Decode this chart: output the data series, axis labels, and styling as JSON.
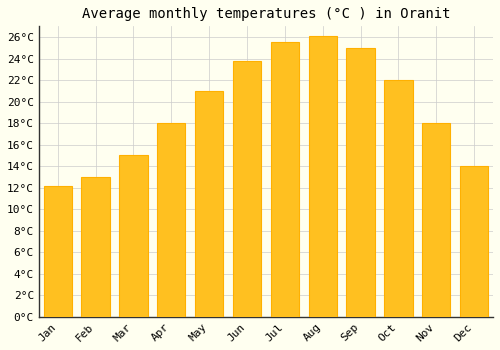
{
  "title": "Average monthly temperatures (°C ) in Oranit",
  "months": [
    "Jan",
    "Feb",
    "Mar",
    "Apr",
    "May",
    "Jun",
    "Jul",
    "Aug",
    "Sep",
    "Oct",
    "Nov",
    "Dec"
  ],
  "temperatures": [
    12.2,
    13.0,
    15.0,
    18.0,
    21.0,
    23.8,
    25.5,
    26.1,
    25.0,
    22.0,
    18.0,
    14.0
  ],
  "bar_color": "#FFC020",
  "bar_edge_color": "#FFB000",
  "background_color": "#FFFFF0",
  "grid_color": "#CCCCCC",
  "spine_color": "#333333",
  "ylim": [
    0,
    27
  ],
  "ytick_step": 2,
  "title_fontsize": 10,
  "tick_fontsize": 8,
  "font_family": "monospace"
}
